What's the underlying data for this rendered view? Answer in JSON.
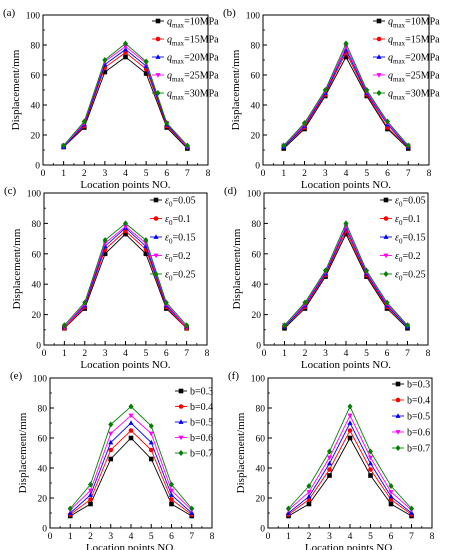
{
  "figure": {
    "background": "#ffffff"
  },
  "chart_data": [
    {
      "panel_label": "(a)",
      "type": "line",
      "xlabel": "Location points NO.",
      "ylabel": "Displacement/mm",
      "xlim": [
        0,
        8
      ],
      "ylim": [
        0,
        100
      ],
      "xticks": [
        "0",
        "1",
        "2",
        "3",
        "4",
        "5",
        "6",
        "7",
        "8"
      ],
      "yticks": [
        "0",
        "20",
        "40",
        "60",
        "80",
        "100"
      ],
      "legend_position": "top-right",
      "x": [
        1,
        2,
        3,
        4,
        5,
        6,
        7
      ],
      "series": [
        {
          "sub": "max",
          "value": "=10MPa",
          "marker": "square",
          "color": "#000000",
          "values": [
            12,
            25,
            62,
            72,
            61,
            25,
            11
          ]
        },
        {
          "sub": "max",
          "value": "=15MPa",
          "marker": "circle",
          "color": "#ff0000",
          "values": [
            12,
            26,
            65,
            75,
            64,
            26,
            12
          ]
        },
        {
          "sub": "max",
          "value": "=20MPa",
          "marker": "triangle-up",
          "color": "#0000ff",
          "values": [
            12,
            27,
            67,
            77,
            66,
            27,
            12
          ]
        },
        {
          "sub": "max",
          "value": "=25MPa",
          "marker": "triangle-down",
          "color": "#ff00ff",
          "values": [
            13,
            28,
            69,
            79,
            68,
            28,
            12
          ]
        },
        {
          "sub": "max",
          "value": "=30MPa",
          "marker": "diamond",
          "color": "#008000",
          "values": [
            13,
            29,
            70,
            81,
            69,
            28,
            13
          ]
        }
      ]
    },
    {
      "panel_label": "(b)",
      "type": "line",
      "xlabel": "Location points NO.",
      "ylabel": "Displacement/mm",
      "xlim": [
        0,
        8
      ],
      "ylim": [
        0,
        100
      ],
      "xticks": [
        "0",
        "1",
        "2",
        "3",
        "4",
        "5",
        "6",
        "7",
        "8"
      ],
      "yticks": [
        "0",
        "20",
        "40",
        "60",
        "80",
        "100"
      ],
      "legend_position": "top-right",
      "x": [
        1,
        2,
        3,
        4,
        5,
        6,
        7
      ],
      "series": [
        {
          "sub": "max",
          "value": "=10MPa",
          "marker": "square",
          "color": "#000000",
          "values": [
            11,
            24,
            46,
            72,
            46,
            24,
            11
          ]
        },
        {
          "sub": "max",
          "value": "=15MPa",
          "marker": "circle",
          "color": "#ff0000",
          "values": [
            12,
            25,
            47,
            75,
            47,
            25,
            12
          ]
        },
        {
          "sub": "max",
          "value": "=20MPa",
          "marker": "triangle-up",
          "color": "#0000ff",
          "values": [
            12,
            26,
            48,
            77,
            48,
            27,
            12
          ]
        },
        {
          "sub": "max",
          "value": "=25MPa",
          "marker": "triangle-down",
          "color": "#ff00ff",
          "values": [
            13,
            27,
            49,
            79,
            49,
            28,
            13
          ]
        },
        {
          "sub": "max",
          "value": "=30MPa",
          "marker": "diamond",
          "color": "#008000",
          "values": [
            13,
            28,
            50,
            81,
            50,
            29,
            13
          ]
        }
      ]
    },
    {
      "panel_label": "(c)",
      "type": "line",
      "xlabel": "Location points NO.",
      "ylabel": "Displacement/mm",
      "xlim": [
        0,
        8
      ],
      "ylim": [
        0,
        100
      ],
      "xticks": [
        "0",
        "1",
        "2",
        "3",
        "4",
        "5",
        "6",
        "7",
        "8"
      ],
      "yticks": [
        "0",
        "20",
        "40",
        "60",
        "80",
        "100"
      ],
      "legend_position": "top-right",
      "x": [
        1,
        2,
        3,
        4,
        5,
        6,
        7
      ],
      "series": [
        {
          "sub": "0",
          "value": "=0.05",
          "marker": "square",
          "color": "#000000",
          "values": [
            11,
            24,
            60,
            73,
            60,
            24,
            11
          ]
        },
        {
          "sub": "0",
          "value": "=0.1",
          "marker": "circle",
          "color": "#ff0000",
          "values": [
            11,
            25,
            63,
            75,
            63,
            25,
            11
          ]
        },
        {
          "sub": "0",
          "value": "=0.15",
          "marker": "triangle-up",
          "color": "#0000ff",
          "values": [
            12,
            26,
            65,
            77,
            65,
            26,
            12
          ]
        },
        {
          "sub": "0",
          "value": "=0.2",
          "marker": "triangle-down",
          "color": "#ff00ff",
          "values": [
            12,
            27,
            67,
            78,
            67,
            27,
            12
          ]
        },
        {
          "sub": "0",
          "value": "=0.25",
          "marker": "diamond",
          "color": "#008000",
          "values": [
            13,
            28,
            69,
            80,
            69,
            28,
            13
          ]
        }
      ]
    },
    {
      "panel_label": "(d)",
      "type": "line",
      "xlabel": "Location points NO.",
      "ylabel": "Displacement/mm",
      "xlim": [
        0,
        8
      ],
      "ylim": [
        0,
        100
      ],
      "xticks": [
        "0",
        "1",
        "2",
        "3",
        "4",
        "5",
        "6",
        "7",
        "8"
      ],
      "yticks": [
        "0",
        "20",
        "40",
        "60",
        "80",
        "100"
      ],
      "legend_position": "top-right",
      "x": [
        1,
        2,
        3,
        4,
        5,
        6,
        7
      ],
      "series": [
        {
          "sub": "0",
          "value": "=0.05",
          "marker": "square",
          "color": "#000000",
          "values": [
            11,
            24,
            45,
            73,
            45,
            24,
            11
          ]
        },
        {
          "sub": "0",
          "value": "=0.1",
          "marker": "circle",
          "color": "#ff0000",
          "values": [
            12,
            25,
            46,
            75,
            46,
            25,
            12
          ]
        },
        {
          "sub": "0",
          "value": "=0.15",
          "marker": "triangle-up",
          "color": "#0000ff",
          "values": [
            12,
            26,
            47,
            77,
            47,
            26,
            12
          ]
        },
        {
          "sub": "0",
          "value": "=0.2",
          "marker": "triangle-down",
          "color": "#ff00ff",
          "values": [
            13,
            27,
            48,
            78,
            48,
            27,
            13
          ]
        },
        {
          "sub": "0",
          "value": "=0.25",
          "marker": "diamond",
          "color": "#008000",
          "values": [
            13,
            28,
            49,
            80,
            49,
            28,
            13
          ]
        }
      ]
    },
    {
      "panel_label": "(e)",
      "type": "line",
      "xlabel": "Location points NO.",
      "ylabel": "Displacement/mm",
      "xlim": [
        0,
        8
      ],
      "ylim": [
        0,
        100
      ],
      "xticks": [
        "0",
        "1",
        "2",
        "3",
        "4",
        "5",
        "6",
        "7",
        "8"
      ],
      "yticks": [
        "0",
        "20",
        "40",
        "60",
        "80",
        "100"
      ],
      "legend_position": "top-right",
      "x": [
        1,
        2,
        3,
        4,
        5,
        6,
        7
      ],
      "series": [
        {
          "text": "b=0.3",
          "marker": "square",
          "color": "#000000",
          "values": [
            8,
            16,
            46,
            60,
            46,
            16,
            8
          ]
        },
        {
          "text": "b=0.4",
          "marker": "circle",
          "color": "#ff0000",
          "values": [
            9,
            19,
            52,
            65,
            52,
            19,
            9
          ]
        },
        {
          "text": "b=0.5",
          "marker": "triangle-up",
          "color": "#0000ff",
          "values": [
            10,
            22,
            57,
            70,
            57,
            22,
            10
          ]
        },
        {
          "text": "b=0.6",
          "marker": "triangle-down",
          "color": "#ff00ff",
          "values": [
            12,
            25,
            63,
            75,
            63,
            25,
            12
          ]
        },
        {
          "text": "b=0.7",
          "marker": "diamond",
          "color": "#008000",
          "values": [
            13,
            29,
            69,
            81,
            68,
            29,
            13
          ]
        }
      ]
    },
    {
      "panel_label": "(f)",
      "type": "line",
      "xlabel": "Location points NO.",
      "ylabel": "Displacement/mm",
      "xlim": [
        0,
        8
      ],
      "ylim": [
        0,
        100
      ],
      "xticks": [
        "0",
        "1",
        "2",
        "3",
        "4",
        "5",
        "6",
        "7",
        "8"
      ],
      "yticks": [
        "0",
        "20",
        "40",
        "60",
        "80",
        "100"
      ],
      "legend_position": "top-right",
      "x": [
        1,
        2,
        3,
        4,
        5,
        6,
        7
      ],
      "series": [
        {
          "text": "b=0.3",
          "marker": "square",
          "color": "#000000",
          "values": [
            8,
            16,
            35,
            60,
            35,
            16,
            8
          ]
        },
        {
          "text": "b=0.4",
          "marker": "circle",
          "color": "#ff0000",
          "values": [
            9,
            19,
            39,
            65,
            39,
            19,
            9
          ]
        },
        {
          "text": "b=0.5",
          "marker": "triangle-up",
          "color": "#0000ff",
          "values": [
            10,
            21,
            43,
            70,
            43,
            21,
            10
          ]
        },
        {
          "text": "b=0.6",
          "marker": "triangle-down",
          "color": "#ff00ff",
          "values": [
            12,
            24,
            47,
            75,
            47,
            24,
            12
          ]
        },
        {
          "text": "b=0.7",
          "marker": "diamond",
          "color": "#008000",
          "values": [
            13,
            28,
            51,
            81,
            51,
            28,
            13
          ]
        }
      ]
    }
  ]
}
